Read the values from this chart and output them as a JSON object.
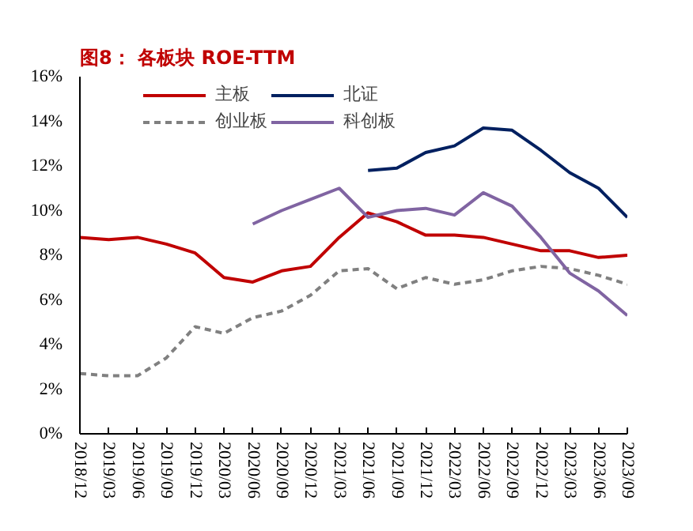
{
  "chart_data": {
    "type": "line",
    "title": "图8：  各板块 ROE-TTM",
    "categories": [
      "2018/12",
      "2019/03",
      "2019/06",
      "2019/09",
      "2019/12",
      "2020/03",
      "2020/06",
      "2020/09",
      "2020/12",
      "2021/03",
      "2021/06",
      "2021/09",
      "2021/12",
      "2022/03",
      "2022/06",
      "2022/09",
      "2022/12",
      "2023/03",
      "2023/06",
      "2023/09"
    ],
    "series": [
      {
        "name": "主板",
        "color": "#c00000",
        "line_style": "solid",
        "values": [
          8.8,
          8.7,
          8.8,
          8.5,
          8.1,
          7.0,
          6.8,
          7.3,
          7.5,
          8.8,
          9.9,
          9.5,
          8.9,
          8.9,
          8.8,
          8.5,
          8.2,
          8.2,
          7.9,
          8.0
        ]
      },
      {
        "name": "创业板",
        "color": "#808080",
        "line_style": "dashed",
        "values": [
          2.7,
          2.6,
          2.6,
          3.4,
          4.8,
          4.5,
          5.2,
          5.5,
          6.2,
          7.3,
          7.4,
          6.5,
          7.0,
          6.7,
          6.9,
          7.3,
          7.5,
          7.4,
          7.1,
          6.7
        ]
      },
      {
        "name": "北证",
        "color": "#002060",
        "line_style": "solid",
        "values": [
          null,
          null,
          null,
          null,
          null,
          null,
          null,
          null,
          null,
          null,
          11.8,
          11.9,
          12.6,
          12.9,
          13.7,
          13.6,
          12.7,
          11.7,
          11.0,
          9.7
        ]
      },
      {
        "name": "科创板",
        "color": "#8064a2",
        "line_style": "solid",
        "values": [
          null,
          null,
          null,
          null,
          null,
          null,
          9.4,
          10.0,
          10.5,
          11.0,
          9.7,
          10.0,
          10.1,
          9.8,
          10.8,
          10.2,
          8.8,
          7.2,
          6.4,
          5.3
        ]
      }
    ],
    "ylim": [
      0,
      16
    ],
    "yticks": [
      {
        "value": 0,
        "label": "0%"
      },
      {
        "value": 2,
        "label": "2%"
      },
      {
        "value": 4,
        "label": "4%"
      },
      {
        "value": 6,
        "label": "6%"
      },
      {
        "value": 8,
        "label": "8%"
      },
      {
        "value": 10,
        "label": "10%"
      },
      {
        "value": 12,
        "label": "12%"
      },
      {
        "value": 14,
        "label": "14%"
      },
      {
        "value": 16,
        "label": "16%"
      }
    ],
    "grid": false,
    "legend": "top",
    "marker": "none"
  }
}
